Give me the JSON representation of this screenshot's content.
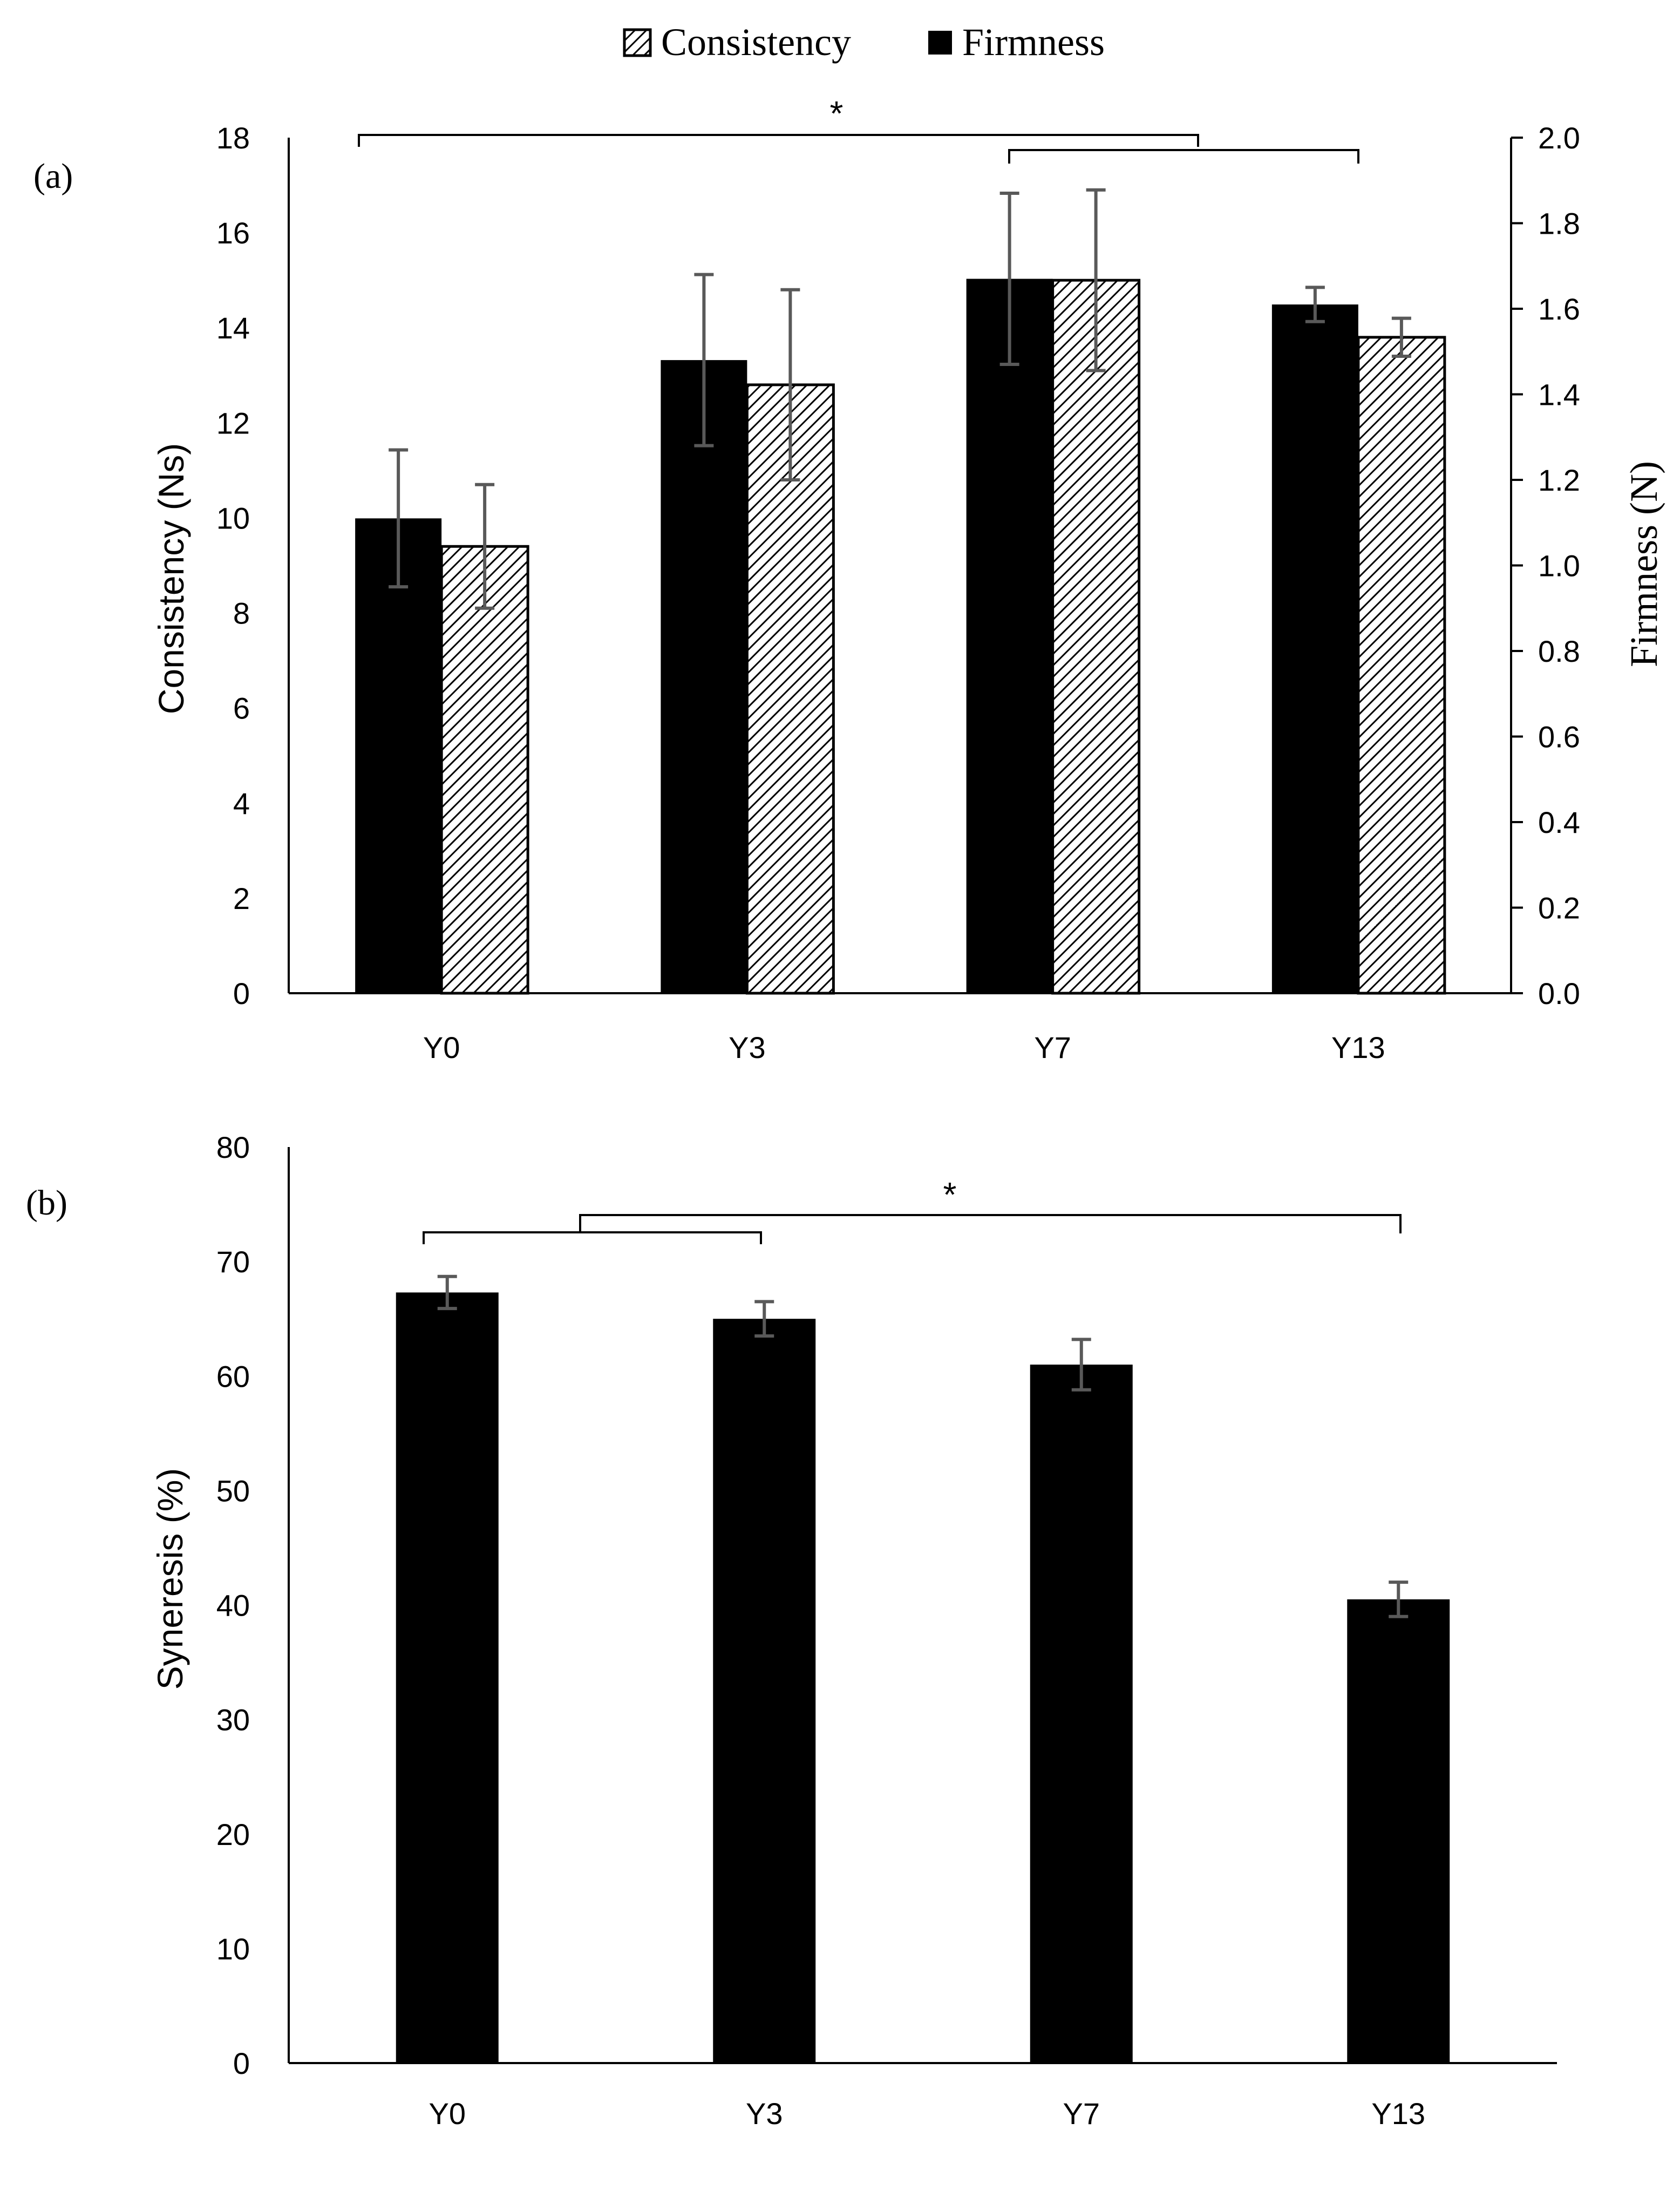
{
  "legend": {
    "consistency_label": "Consistency",
    "firmness_label": "Firmness"
  },
  "colors": {
    "bar": "#000000",
    "error_bar": "#595959",
    "hatch_bg": "#ffffff",
    "hatch_line": "#000000"
  },
  "chart_data": [
    {
      "panel_label": "(a)",
      "type": "bar",
      "categories": [
        "Y0",
        "Y3",
        "Y7",
        "Y13"
      ],
      "series": [
        {
          "name": "Firmness",
          "axis": "right",
          "pattern": "solid",
          "values": [
            1.11,
            1.48,
            1.67,
            1.61
          ],
          "errors": [
            0.16,
            0.2,
            0.2,
            0.04
          ]
        },
        {
          "name": "Consistency",
          "axis": "left",
          "pattern": "hatched",
          "values": [
            9.4,
            12.8,
            15.0,
            13.8
          ],
          "errors": [
            1.3,
            2.0,
            1.9,
            0.4
          ]
        }
      ],
      "ylabel": "Consistency (Ns)",
      "ylabel_right": "Firmness (N)",
      "ylim": [
        0,
        18
      ],
      "ylim_right": [
        0,
        2.0
      ],
      "yticks": [
        "0",
        "2",
        "4",
        "6",
        "8",
        "10",
        "12",
        "14",
        "16",
        "18"
      ],
      "yticks_right": [
        "0.0",
        "0.2",
        "0.4",
        "0.6",
        "0.8",
        "1.0",
        "1.2",
        "1.4",
        "1.6",
        "1.8",
        "2.0"
      ],
      "significance": {
        "label": "*",
        "outer_bracket": [
          "Y0",
          "Y7"
        ],
        "inner_bracket": [
          "Y7",
          "Y13"
        ]
      }
    },
    {
      "panel_label": "(b)",
      "type": "bar",
      "categories": [
        "Y0",
        "Y3",
        "Y7",
        "Y13"
      ],
      "series": [
        {
          "name": "Syneresis",
          "pattern": "solid",
          "values": [
            67.3,
            65.0,
            61.0,
            40.5
          ],
          "errors": [
            1.4,
            1.5,
            2.2,
            1.5
          ]
        }
      ],
      "ylabel": "Syneresis (%)",
      "ylim": [
        0,
        80
      ],
      "yticks": [
        "0",
        "10",
        "20",
        "30",
        "40",
        "50",
        "60",
        "70",
        "80"
      ],
      "significance": {
        "label": "*",
        "inner_bracket": [
          "Y0",
          "Y3"
        ],
        "outer_bracket": [
          "Y0",
          "Y13"
        ]
      }
    }
  ]
}
